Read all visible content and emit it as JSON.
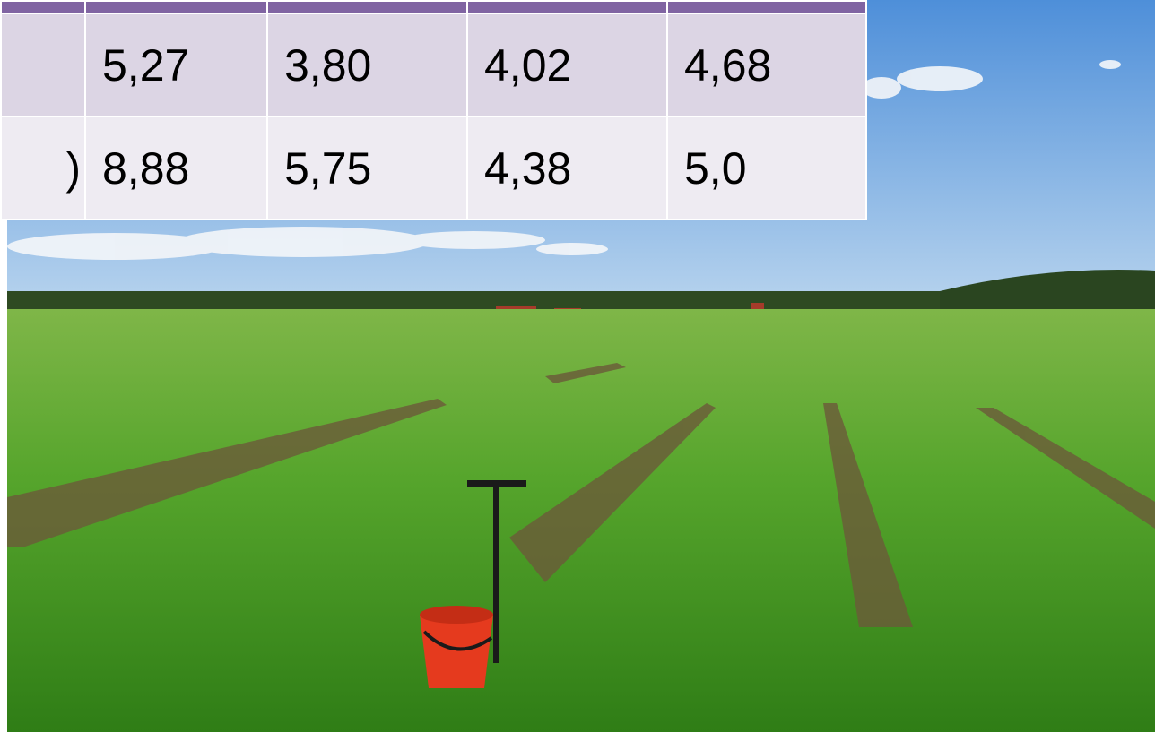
{
  "table": {
    "header": [
      "",
      "",
      "",
      "",
      ""
    ],
    "rows": [
      {
        "label": "",
        "values": [
          "5,27",
          "3,80",
          "4,02",
          "4,68"
        ]
      },
      {
        "label": ")",
        "values": [
          "8,88",
          "5,75",
          "4,38",
          "5,0"
        ]
      }
    ]
  },
  "photo": {
    "subject": "field-with-bucket",
    "colors": {
      "sky": "#6fa6e0",
      "grass": "#4f9e2a",
      "bucket": "#e53a1e",
      "treeline": "#2e4a22"
    }
  }
}
